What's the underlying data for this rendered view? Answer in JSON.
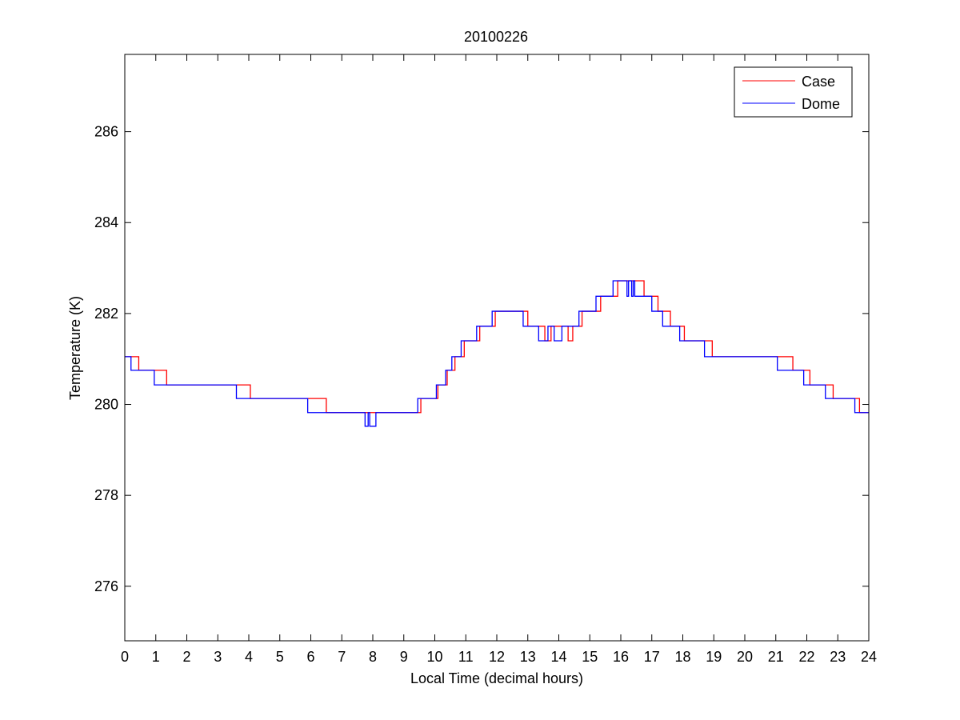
{
  "chart_data": {
    "type": "line",
    "title": "20100226",
    "xlabel": "Local Time (decimal hours)",
    "ylabel": "Temperature (K)",
    "xlim": [
      0,
      24
    ],
    "ylim": [
      274.8,
      287.7
    ],
    "xticks": [
      0,
      1,
      2,
      3,
      4,
      5,
      6,
      7,
      8,
      9,
      10,
      11,
      12,
      13,
      14,
      15,
      16,
      17,
      18,
      19,
      20,
      21,
      22,
      23,
      24
    ],
    "yticks": [
      276,
      278,
      280,
      282,
      284,
      286
    ],
    "grid": false,
    "legend_position": "top-right",
    "series": [
      {
        "name": "Case",
        "color": "#ff0000",
        "step": true,
        "points": [
          [
            0.0,
            281.05
          ],
          [
            0.45,
            280.75
          ],
          [
            1.35,
            280.43
          ],
          [
            4.05,
            280.13
          ],
          [
            6.5,
            279.82
          ],
          [
            9.55,
            280.13
          ],
          [
            10.1,
            280.43
          ],
          [
            10.4,
            280.75
          ],
          [
            10.65,
            281.05
          ],
          [
            10.95,
            281.4
          ],
          [
            11.45,
            281.72
          ],
          [
            11.95,
            282.05
          ],
          [
            13.0,
            281.72
          ],
          [
            13.55,
            281.4
          ],
          [
            13.75,
            281.72
          ],
          [
            14.3,
            281.4
          ],
          [
            14.45,
            281.72
          ],
          [
            14.75,
            282.05
          ],
          [
            15.35,
            282.38
          ],
          [
            15.9,
            282.72
          ],
          [
            16.75,
            282.38
          ],
          [
            17.2,
            282.05
          ],
          [
            17.6,
            281.72
          ],
          [
            18.05,
            281.4
          ],
          [
            18.95,
            281.05
          ],
          [
            21.55,
            280.75
          ],
          [
            22.1,
            280.43
          ],
          [
            22.85,
            280.13
          ],
          [
            23.7,
            279.82
          ],
          [
            24.0,
            279.82
          ]
        ]
      },
      {
        "name": "Dome",
        "color": "#0000ff",
        "step": true,
        "points": [
          [
            0.0,
            281.05
          ],
          [
            0.2,
            280.75
          ],
          [
            0.95,
            280.43
          ],
          [
            3.6,
            280.13
          ],
          [
            5.9,
            279.82
          ],
          [
            7.75,
            279.52
          ],
          [
            7.85,
            279.82
          ],
          [
            7.9,
            279.52
          ],
          [
            8.1,
            279.82
          ],
          [
            9.45,
            280.13
          ],
          [
            10.05,
            280.43
          ],
          [
            10.35,
            280.75
          ],
          [
            10.55,
            281.05
          ],
          [
            10.85,
            281.4
          ],
          [
            11.35,
            281.72
          ],
          [
            11.85,
            282.05
          ],
          [
            12.85,
            281.72
          ],
          [
            13.35,
            281.4
          ],
          [
            13.65,
            281.72
          ],
          [
            13.85,
            281.4
          ],
          [
            14.1,
            281.72
          ],
          [
            14.65,
            282.05
          ],
          [
            15.2,
            282.38
          ],
          [
            15.75,
            282.72
          ],
          [
            16.2,
            282.38
          ],
          [
            16.25,
            282.72
          ],
          [
            16.35,
            282.38
          ],
          [
            16.4,
            282.72
          ],
          [
            16.45,
            282.38
          ],
          [
            17.0,
            282.05
          ],
          [
            17.35,
            281.72
          ],
          [
            17.9,
            281.4
          ],
          [
            18.7,
            281.05
          ],
          [
            21.05,
            280.75
          ],
          [
            21.9,
            280.43
          ],
          [
            22.6,
            280.13
          ],
          [
            23.55,
            279.82
          ],
          [
            24.0,
            279.82
          ]
        ]
      }
    ]
  }
}
